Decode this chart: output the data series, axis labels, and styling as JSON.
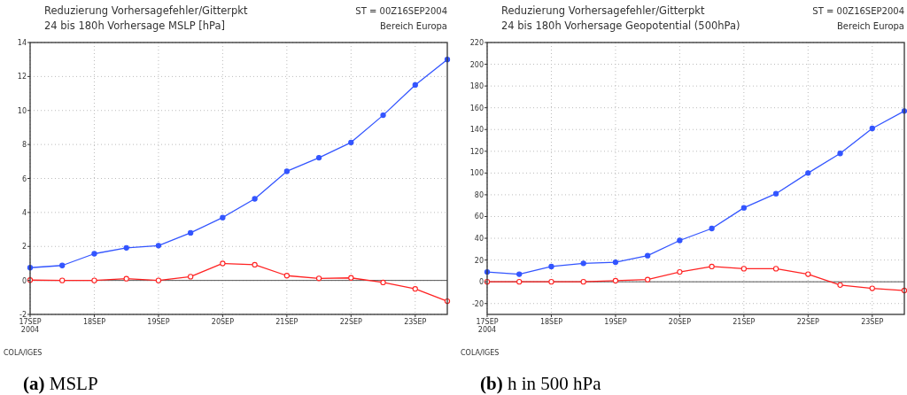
{
  "chart_data": [
    {
      "type": "line",
      "title": "Reduzierung Vorhersagefehler/Gitterpkt",
      "subtitle": "24 bis 180h Vorhersage MSLP [hPa]",
      "annotations": [
        "ST = 00Z16SEP2004",
        "Bereich Europa",
        "COLA/IGES",
        "(a) MSLP"
      ],
      "x": [
        "2004-09-17T00:00",
        "2004-09-17T12:00",
        "2004-09-18T00:00",
        "2004-09-18T12:00",
        "2004-09-19T00:00",
        "2004-09-19T12:00",
        "2004-09-20T00:00",
        "2004-09-20T12:00",
        "2004-09-21T00:00",
        "2004-09-21T12:00",
        "2004-09-22T00:00",
        "2004-09-22T12:00",
        "2004-09-23T00:00",
        "2004-09-23T12:00"
      ],
      "series": [
        {
          "color": "#3355ff",
          "values": [
            0.75,
            0.88,
            1.57,
            1.92,
            2.05,
            2.8,
            3.7,
            4.8,
            6.42,
            7.22,
            8.12,
            9.72,
            11.5,
            13.0
          ]
        },
        {
          "color": "#ff2222",
          "values": [
            0.02,
            0.0,
            0.0,
            0.1,
            0.0,
            0.22,
            1.0,
            0.92,
            0.28,
            0.12,
            0.15,
            -0.12,
            -0.5,
            -1.22
          ]
        }
      ],
      "xlim": [
        "2004-09-17T00:00",
        "2004-09-23T12:00"
      ],
      "xticks": [
        {
          "value": "2004-09-17",
          "label": "17SEP\n2004"
        },
        {
          "value": "2004-09-18",
          "label": "18SEP"
        },
        {
          "value": "2004-09-19",
          "label": "19SEP"
        },
        {
          "value": "2004-09-20",
          "label": "20SEP"
        },
        {
          "value": "2004-09-21",
          "label": "21SEP"
        },
        {
          "value": "2004-09-22",
          "label": "22SEP"
        },
        {
          "value": "2004-09-23",
          "label": "23SEP"
        }
      ],
      "ylim": [
        -2,
        14
      ],
      "yticks": [
        -2,
        0,
        2,
        4,
        6,
        8,
        10,
        12,
        14
      ],
      "grid": true,
      "marker": "circle",
      "line_style": "solid",
      "ref_lines": [
        {
          "axis": "y",
          "value": 0,
          "color": "#555555"
        }
      ]
    },
    {
      "type": "line",
      "title": "Reduzierung Vorhersagefehler/Gitterpkt",
      "subtitle": "24 bis 180h Vorhersage Geopotential (500hPa)",
      "annotations": [
        "ST = 00Z16SEP2004",
        "Bereich Europa",
        "COLA/IGES",
        "(b) h in 500 hPa"
      ],
      "x": [
        "2004-09-17T00:00",
        "2004-09-17T12:00",
        "2004-09-18T00:00",
        "2004-09-18T12:00",
        "2004-09-19T00:00",
        "2004-09-19T12:00",
        "2004-09-20T00:00",
        "2004-09-20T12:00",
        "2004-09-21T00:00",
        "2004-09-21T12:00",
        "2004-09-22T00:00",
        "2004-09-22T12:00",
        "2004-09-23T00:00",
        "2004-09-23T12:00"
      ],
      "series": [
        {
          "color": "#3355ff",
          "values": [
            9,
            7,
            14,
            17,
            18,
            24,
            38,
            49,
            68,
            81,
            100,
            118,
            141,
            157
          ]
        },
        {
          "color": "#ff2222",
          "values": [
            0,
            0,
            0,
            0,
            1,
            2,
            9,
            14,
            12,
            12,
            7,
            -3,
            -6,
            -8
          ]
        }
      ],
      "xlim": [
        "2004-09-17T00:00",
        "2004-09-23T12:00"
      ],
      "xticks": [
        {
          "value": "2004-09-17",
          "label": "17SEP\n2004"
        },
        {
          "value": "2004-09-18",
          "label": "18SEP"
        },
        {
          "value": "2004-09-19",
          "label": "19SEP"
        },
        {
          "value": "2004-09-20",
          "label": "20SEP"
        },
        {
          "value": "2004-09-21",
          "label": "21SEP"
        },
        {
          "value": "2004-09-22",
          "label": "22SEP"
        },
        {
          "value": "2004-09-23",
          "label": "23SEP"
        }
      ],
      "ylim": [
        -30,
        220
      ],
      "yticks": [
        -20,
        0,
        20,
        40,
        60,
        80,
        100,
        120,
        140,
        160,
        180,
        200,
        220
      ],
      "grid": true,
      "marker": "circle",
      "line_style": "solid",
      "ref_lines": [
        {
          "axis": "y",
          "value": 0,
          "color": "#555555"
        }
      ]
    }
  ]
}
